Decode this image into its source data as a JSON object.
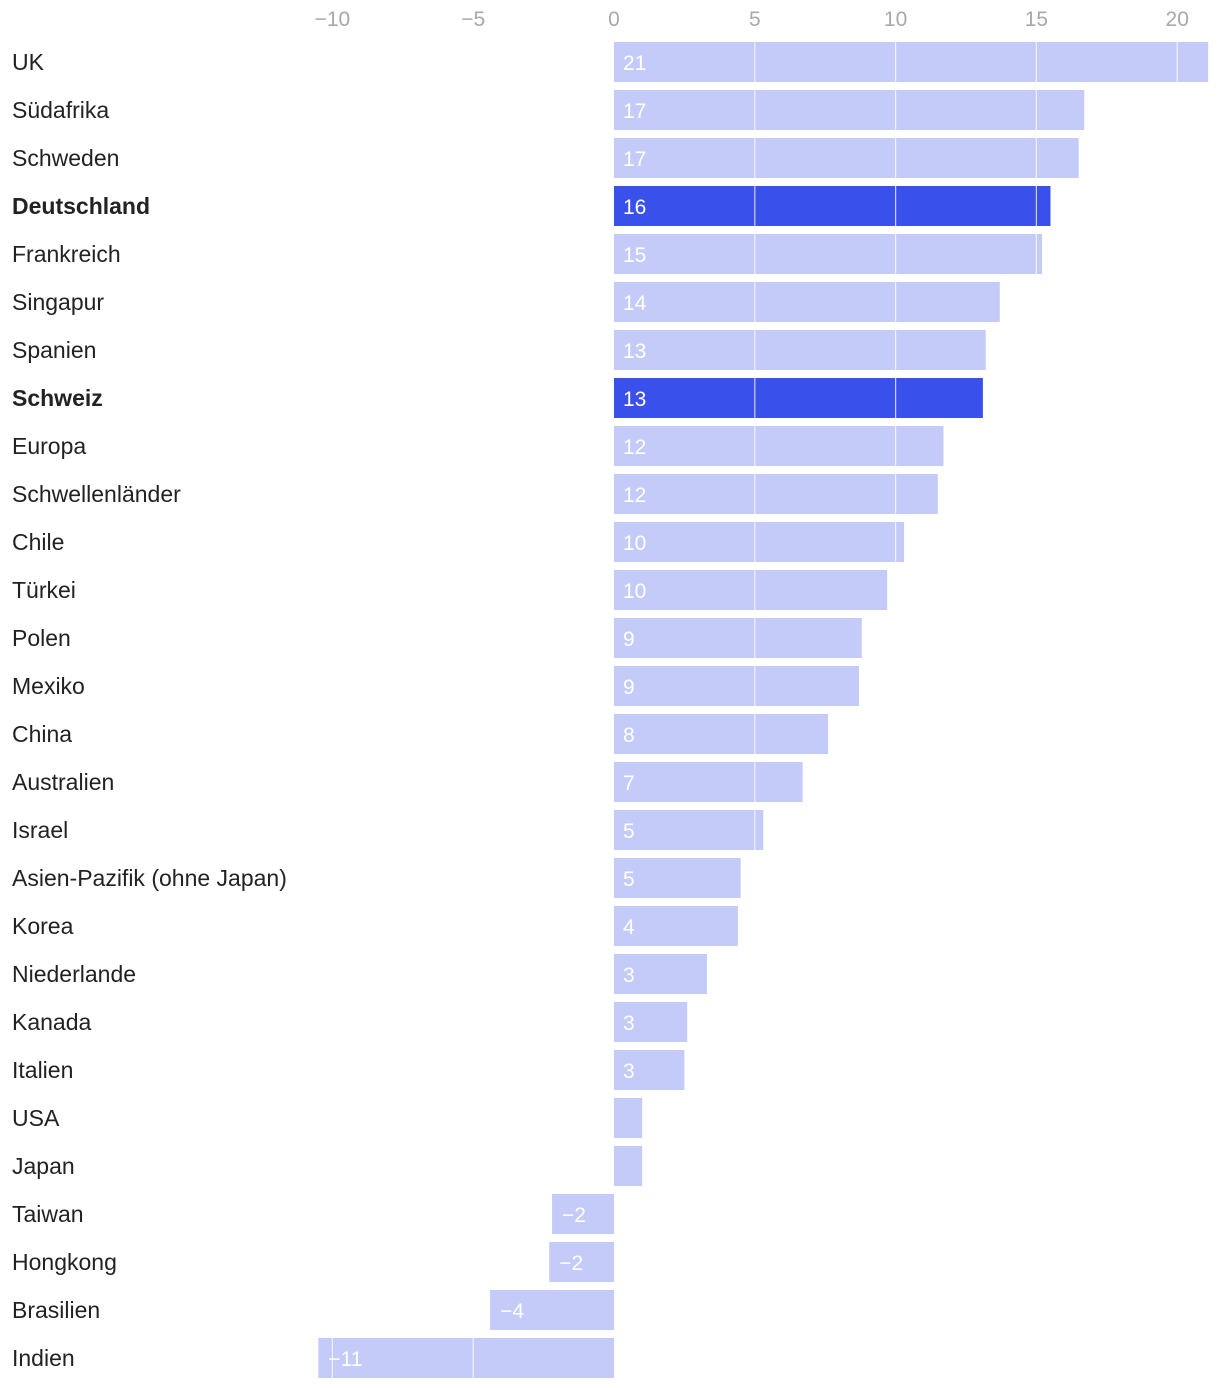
{
  "chart_data": {
    "type": "bar",
    "orientation": "horizontal",
    "title": "",
    "xlabel": "",
    "ylabel": "",
    "xlim": [
      -10.5,
      21.2
    ],
    "ticks": [
      -10,
      -5,
      0,
      5,
      10,
      15,
      20
    ],
    "tick_labels": [
      "−10",
      "−5",
      "0",
      "5",
      "10",
      "15",
      "20"
    ],
    "grid": true,
    "legend": "none",
    "colors": {
      "default": "#c5cbf8",
      "highlight": "#3a50ea",
      "label": "#ffffff",
      "tick": "#a8a8a8",
      "category": "#222222"
    },
    "categories": [
      "UK",
      "Südafrika",
      "Schweden",
      "Deutschland",
      "Frankreich",
      "Singapur",
      "Spanien",
      "Schweiz",
      "Europa",
      "Schwellenländer",
      "Chile",
      "Türkei",
      "Polen",
      "Mexiko",
      "China",
      "Australien",
      "Israel",
      "Asien-Pazifik (ohne Japan)",
      "Korea",
      "Niederlande",
      "Kanada",
      "Italien",
      "USA",
      "Japan",
      "Taiwan",
      "Hongkong",
      "Brasilien",
      "Indien"
    ],
    "values": [
      21.1,
      16.7,
      16.5,
      15.5,
      15.2,
      13.7,
      13.2,
      13.1,
      11.7,
      11.5,
      10.3,
      9.7,
      8.8,
      8.7,
      7.6,
      6.7,
      5.3,
      4.5,
      4.4,
      3.3,
      2.6,
      2.5,
      1.0,
      1.0,
      -2.2,
      -2.3,
      -4.4,
      -10.5
    ],
    "value_labels": [
      "21",
      "17",
      "17",
      "16",
      "15",
      "14",
      "13",
      "13",
      "12",
      "12",
      "10",
      "10",
      "9",
      "9",
      "8",
      "7",
      "5",
      "5",
      "4",
      "3",
      "3",
      "3",
      "",
      "",
      "−2",
      "−2",
      "−4",
      "−11"
    ],
    "highlighted": [
      "Deutschland",
      "Schweiz"
    ]
  }
}
